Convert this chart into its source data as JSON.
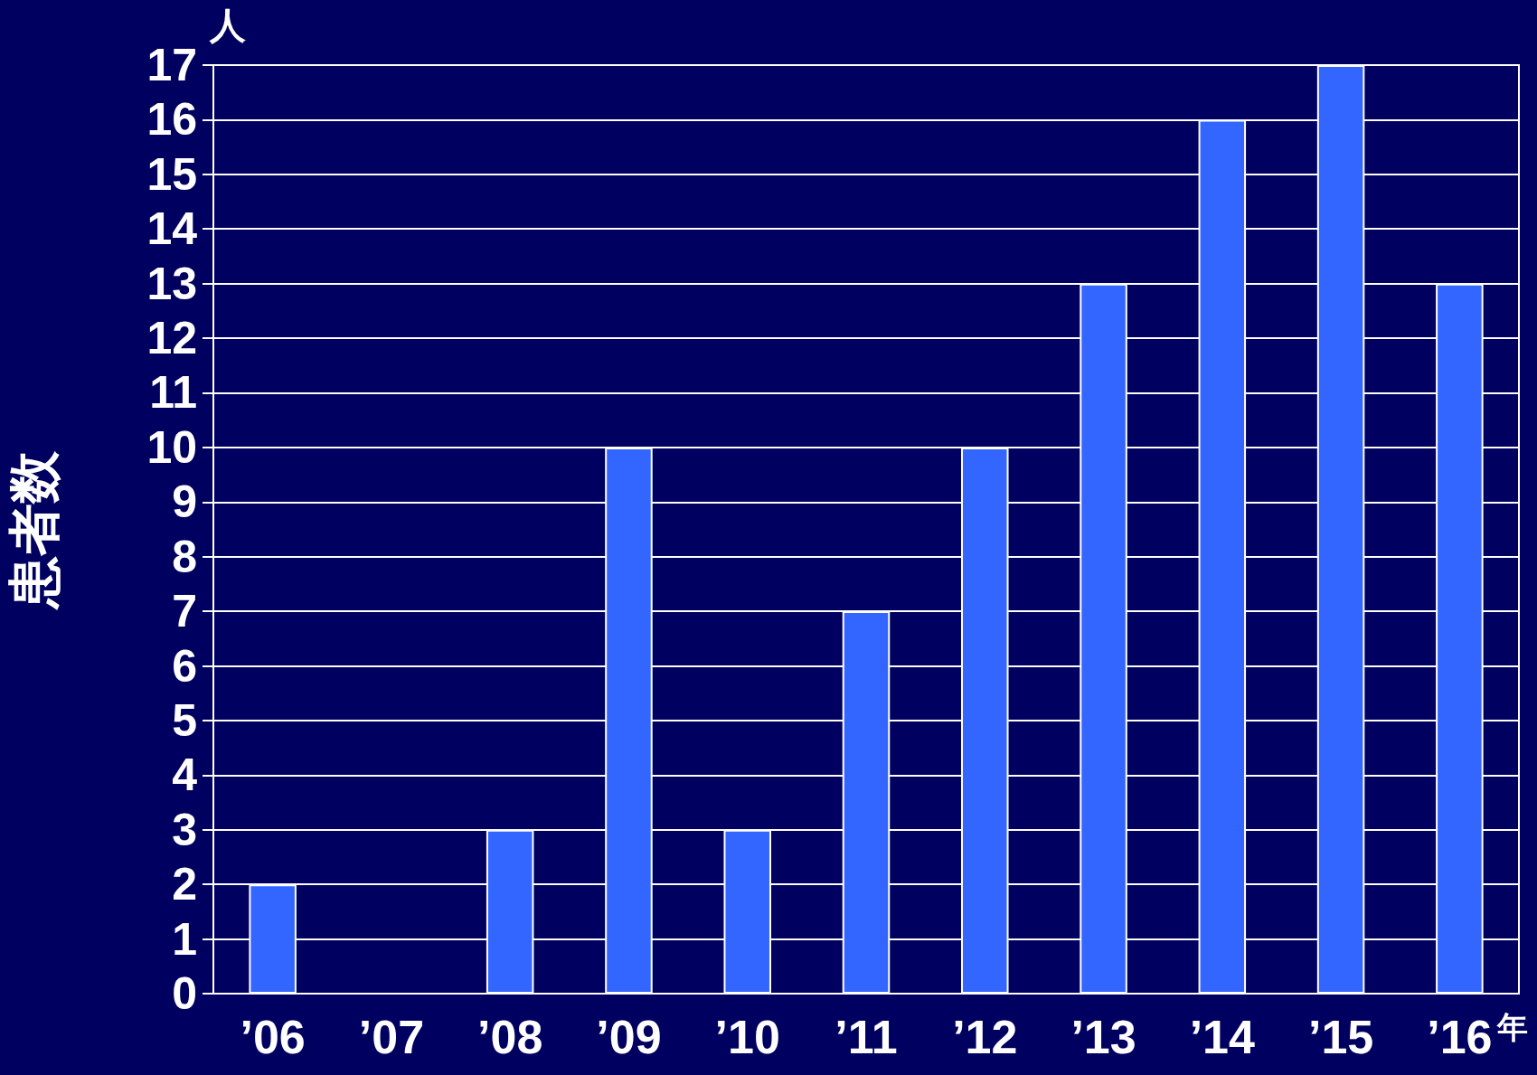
{
  "chart_data": {
    "type": "bar",
    "ylabel": "患者数",
    "xlabel": "年",
    "annotations": [
      "人"
    ],
    "categories": [
      "’06",
      "’07",
      "’08",
      "’09",
      "’10",
      "’11",
      "’12",
      "’13",
      "’14",
      "’15",
      "’16"
    ],
    "values": [
      2,
      0,
      3,
      10,
      3,
      7,
      10,
      13,
      16,
      17,
      13
    ],
    "color": "#3366ff",
    "ylim": [
      0,
      17
    ],
    "yticks": [
      0,
      1,
      2,
      3,
      4,
      5,
      6,
      7,
      8,
      9,
      10,
      11,
      12,
      13,
      14,
      15,
      16,
      17
    ],
    "grid": "y"
  }
}
